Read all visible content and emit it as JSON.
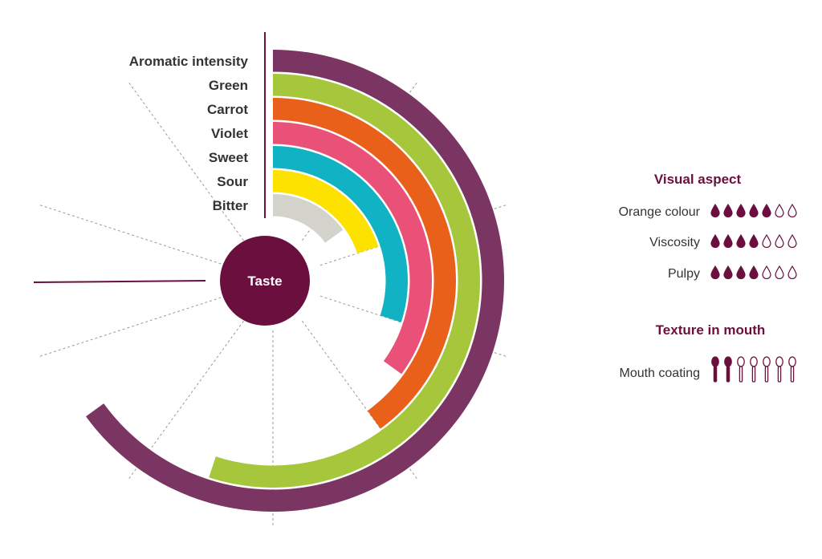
{
  "chart_data": {
    "type": "radial-bar",
    "center_label": "Taste",
    "categories": [
      "Aromatic intensity",
      "Green",
      "Carrot",
      "Violet",
      "Sweet",
      "Sour",
      "Bitter"
    ],
    "values": [
      6.5,
      5.5,
      4,
      3.5,
      3,
      2,
      1.5
    ],
    "scale_max": 10,
    "colors": [
      "#7b3562",
      "#a6c63c",
      "#e9601b",
      "#ea5178",
      "#12b2c5",
      "#fde200",
      "#d3d3cb"
    ],
    "accent_color": "#6b0f3e"
  },
  "visual_aspect": {
    "title": "Visual aspect",
    "icon": "drop-icon",
    "items": [
      {
        "label": "Orange colour",
        "filled": 5,
        "total": 7
      },
      {
        "label": "Viscosity",
        "filled": 4,
        "total": 7
      },
      {
        "label": "Pulpy",
        "filled": 4,
        "total": 7
      }
    ]
  },
  "texture": {
    "title": "Texture in mouth",
    "icon": "spoon-icon",
    "items": [
      {
        "label": "Mouth coating",
        "filled": 2,
        "total": 7
      }
    ]
  }
}
